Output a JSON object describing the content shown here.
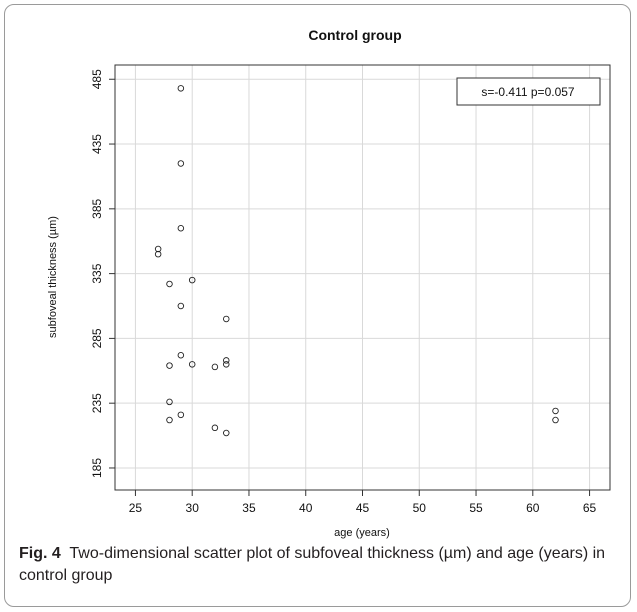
{
  "chart_data": {
    "type": "scatter",
    "title": "Control group",
    "xlabel": "age (years)",
    "ylabel": "subfoveal thickness (µm)",
    "xlim": [
      23.2,
      66.8
    ],
    "ylim": [
      168,
      496
    ],
    "x_ticks": [
      25,
      30,
      35,
      40,
      45,
      50,
      55,
      60,
      65
    ],
    "y_ticks": [
      185,
      235,
      285,
      335,
      385,
      435,
      485
    ],
    "grid": true,
    "annotation": "s=-0.411 p=0.057",
    "annotation_position": "top-right",
    "series": [
      {
        "points": [
          [
            29,
            478
          ],
          [
            29,
            420
          ],
          [
            29,
            370
          ],
          [
            27,
            354
          ],
          [
            27,
            350
          ],
          [
            30,
            330
          ],
          [
            28,
            327
          ],
          [
            29,
            310
          ],
          [
            33,
            300
          ],
          [
            29,
            272
          ],
          [
            33,
            268
          ],
          [
            33,
            265
          ],
          [
            28,
            264
          ],
          [
            30,
            265
          ],
          [
            32,
            263
          ],
          [
            28,
            236
          ],
          [
            29,
            226
          ],
          [
            28,
            222
          ],
          [
            32,
            216
          ],
          [
            33,
            212
          ],
          [
            62,
            229
          ],
          [
            62,
            222
          ]
        ],
        "marker": "open-circle",
        "color": "#222222"
      }
    ]
  },
  "caption": {
    "label": "Fig. 4",
    "text": "Two-dimensional scatter plot of subfoveal thickness (µm) and age (years) in control group"
  }
}
